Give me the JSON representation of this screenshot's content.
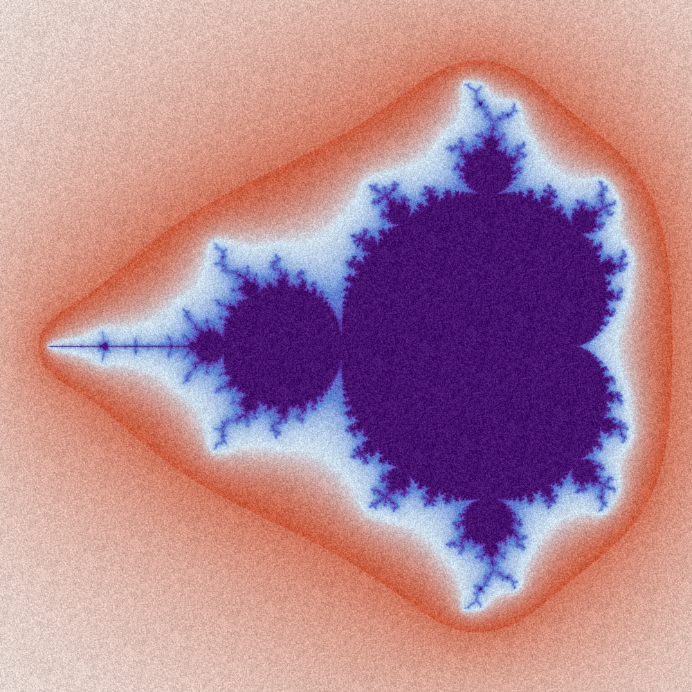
{
  "image": {
    "subject": "mandelbrot-set-fractal",
    "palette": {
      "outer_blue": "#5e8ec2",
      "pale_mid": "#e6dcd8",
      "warm_band": "#cc5a3c",
      "light_blue": "#cfe0ef",
      "mid_blue": "#5f84d2",
      "violet": "#5f3fb0",
      "deep_purple": "#46106e"
    },
    "has_noise_texture": true
  }
}
